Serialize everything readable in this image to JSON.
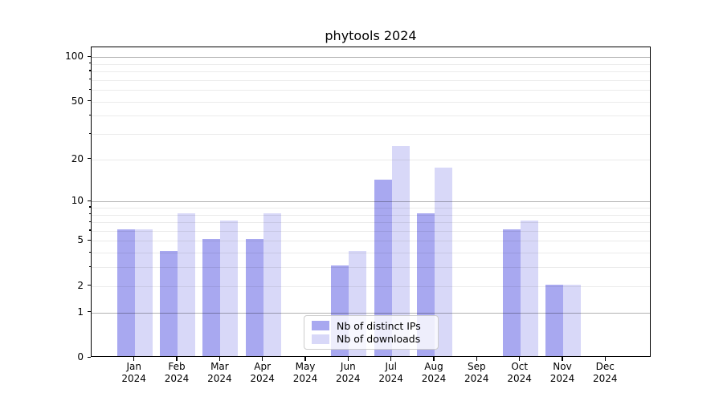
{
  "chart_data": {
    "type": "bar",
    "title": "phytools 2024",
    "categories": [
      "Jan",
      "Feb",
      "Mar",
      "Apr",
      "May",
      "Jun",
      "Jul",
      "Aug",
      "Sep",
      "Oct",
      "Nov",
      "Dec"
    ],
    "year": "2024",
    "series": [
      {
        "name": "Nb of distinct IPs",
        "color": "#a8a8f0",
        "values": [
          6,
          4,
          5,
          5,
          0,
          3,
          14,
          8,
          0,
          6,
          2,
          0
        ]
      },
      {
        "name": "Nb of downloads",
        "color": "#d8d8f8",
        "values": [
          6,
          8,
          7,
          8,
          0,
          4,
          24,
          17,
          0,
          7,
          2,
          0
        ]
      }
    ],
    "scale": "log10(1+v)",
    "ylim": [
      0,
      117
    ],
    "y_ticks": [
      0,
      1,
      2,
      5,
      10,
      20,
      50,
      100
    ],
    "y_minor_ticks": [
      3,
      4,
      6,
      7,
      8,
      9,
      30,
      40,
      60,
      70,
      80,
      90
    ],
    "y_major_gridlines": [
      1,
      10,
      100
    ],
    "grid": "on",
    "legend_position": "lower center",
    "xlabel": "",
    "ylabel": ""
  },
  "legend": {
    "items": [
      {
        "label": "Nb of distinct IPs",
        "color": "#a8a8f0"
      },
      {
        "label": "Nb of downloads",
        "color": "#d8d8f8"
      }
    ]
  },
  "colors": {
    "distinct_ips": "#a8a8f0",
    "downloads": "#d8d8f8",
    "major_grid": "rgba(0,0,0,0.30)",
    "minor_grid": "rgba(0,0,0,0.08)"
  }
}
